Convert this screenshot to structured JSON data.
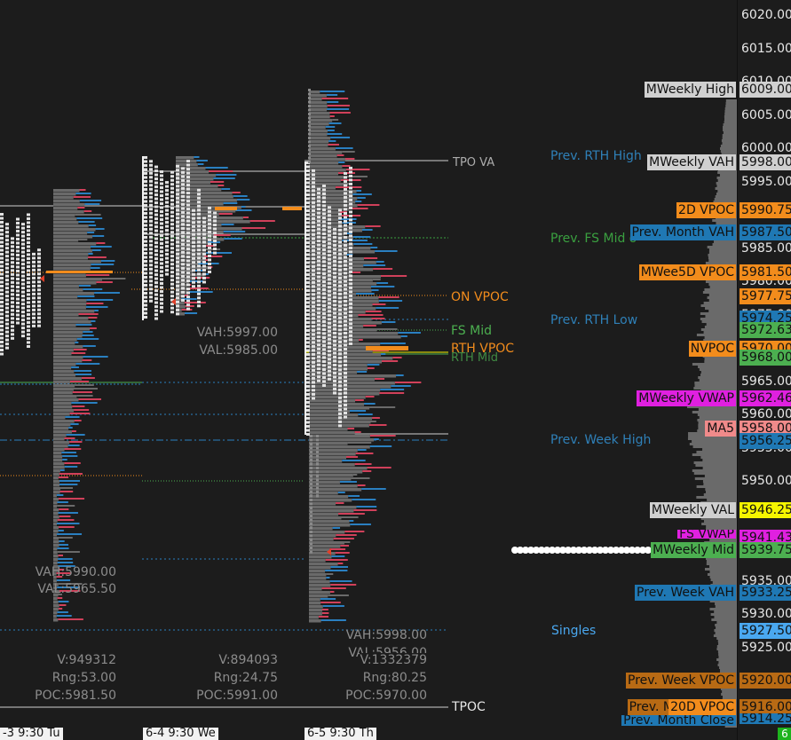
{
  "price_axis": {
    "labels": [
      "6020.00",
      "6015.00",
      "6010.00",
      "6005.00",
      "6000.00",
      "5995.00",
      "5990.00",
      "5985.00",
      "5980.00",
      "5975.00",
      "5970.00",
      "5965.00",
      "5960.00",
      "5955.00",
      "5950.00",
      "5945.00",
      "5940.00",
      "5935.00",
      "5930.00",
      "5925.00",
      "5920.00",
      "5915.00"
    ],
    "corner_label": "6"
  },
  "axis_tags": [
    {
      "text": "5998.00",
      "bg": "#d0d0d0",
      "fg": "#111111"
    },
    {
      "text": "6009.00",
      "bg": "#d0d0d0",
      "fg": "#111111"
    },
    {
      "text": "5990.75",
      "bg": "#f28c1c",
      "fg": "#111111"
    },
    {
      "text": "5987.50",
      "bg": "#1f78b4",
      "fg": "#111111"
    },
    {
      "text": "5981.50",
      "bg": "#f28c1c",
      "fg": "#111111"
    },
    {
      "text": "5977.75",
      "bg": "#f28c1c",
      "fg": "#111111"
    },
    {
      "text": "5974.25",
      "bg": "#1f78b4",
      "fg": "#111111"
    },
    {
      "text": "5972.63",
      "bg": "#4caf50",
      "fg": "#111111"
    },
    {
      "text": "5970.00",
      "bg": "#f28c1c",
      "fg": "#111111"
    },
    {
      "text": "5968.00",
      "bg": "#4caf50",
      "fg": "#111111"
    },
    {
      "text": "5962.46",
      "bg": "#e020e0",
      "fg": "#111111"
    },
    {
      "text": "5958.00",
      "bg": "#f08a8a",
      "fg": "#111111"
    },
    {
      "text": "5956.25",
      "bg": "#1f78b4",
      "fg": "#111111"
    },
    {
      "text": "5946.25",
      "bg": "#f5f500",
      "fg": "#111111"
    },
    {
      "text": "5941.43",
      "bg": "#e020e0",
      "fg": "#111111"
    },
    {
      "text": "5939.75",
      "bg": "#4caf50",
      "fg": "#111111"
    },
    {
      "text": "5933.25",
      "bg": "#1f78b4",
      "fg": "#111111"
    },
    {
      "text": "5927.50",
      "bg": "#4aa8f0",
      "fg": "#111111"
    },
    {
      "text": "5920.00",
      "bg": "#b86a14",
      "fg": "#111111"
    },
    {
      "text": "5916.00",
      "bg": "#b86a14",
      "fg": "#111111"
    },
    {
      "text": "5914.25",
      "bg": "#1f78b4",
      "fg": "#111111"
    }
  ],
  "level_labels": [
    {
      "text": "Weekly High",
      "bg": "#d0d0d0",
      "fg": "#111111",
      "prefix": "M"
    },
    {
      "text": "Weekly VAH",
      "bg": "#d0d0d0",
      "fg": "#111111",
      "prefix": "M"
    },
    {
      "text": "2D VPOC",
      "bg": "#f28c1c",
      "fg": "#111111",
      "prefix": ""
    },
    {
      "text": "Prev. Month VAH",
      "bg": "#1f78b4",
      "fg": "#111111",
      "prefix": ""
    },
    {
      "text": "Wee5D VPOC",
      "bg": "#f28c1c",
      "fg": "#111111",
      "prefix": "M"
    },
    {
      "text": "NVPOC",
      "bg": "#f28c1c",
      "fg": "#111111",
      "prefix": ""
    },
    {
      "text": "Weekly VWAP",
      "bg": "#e020e0",
      "fg": "#111111",
      "prefix": "M"
    },
    {
      "text": "MA5",
      "bg": "#f08a8a",
      "fg": "#111111",
      "prefix": ""
    },
    {
      "text": "Weekly VAL",
      "bg": "#d0d0d0",
      "fg": "#111111",
      "prefix": "M"
    },
    {
      "text": "FS VWAP",
      "bg": "#e020e0",
      "fg": "#111111",
      "prefix": ""
    },
    {
      "text": "Weekly Mid",
      "bg": "#4caf50",
      "fg": "#111111",
      "prefix": "M"
    },
    {
      "text": "Prev. Week VAH",
      "bg": "#1f78b4",
      "fg": "#111111",
      "prefix": ""
    },
    {
      "text": "Prev. Week VPOC",
      "bg": "#b86a14",
      "fg": "#111111",
      "prefix": ""
    },
    {
      "text": "Prev. M",
      "bg": "#b86a14",
      "fg": "#111111",
      "prefix": ""
    },
    {
      "text": "20D VPOC",
      "bg": "#f28c1c",
      "fg": "#111111",
      "prefix": ""
    },
    {
      "text": "Prev. Month Close",
      "bg": "#1f78b4",
      "fg": "#111111",
      "prefix": ""
    }
  ],
  "floating_labels": [
    {
      "text": "Prev. RTH High",
      "color": "#2f80b8"
    },
    {
      "text": "Prev. FS Mid o",
      "color": "#3aa040"
    },
    {
      "text": "Prev. RTH Low",
      "color": "#2f80b8"
    },
    {
      "text": "Prev. Week High",
      "color": "#2f80b8"
    },
    {
      "text": "Singles",
      "color": "#4aa8f0"
    },
    {
      "text": "ON VPOC",
      "color": "#f28c1c"
    },
    {
      "text": "FS Mid",
      "color": "#4caf50"
    },
    {
      "text": "RTH VPOC",
      "color": "#f28c1c"
    },
    {
      "text": "RTH Mid",
      "color": "#4caf50"
    },
    {
      "text": "TPO VA",
      "color": "#d0d0d0"
    },
    {
      "text": "TPOC",
      "color": "#e8e8e8"
    }
  ],
  "sessions": [
    {
      "vah": "VAH:5990.00",
      "val": "VAL:5965.50",
      "volume": "V:949312",
      "range": "Rng:53.00",
      "poc": "POC:5981.50"
    },
    {
      "vah": "VAH:5997.00",
      "val": "VAL:5985.00",
      "volume": "V:894093",
      "range": "Rng:24.75",
      "poc": "POC:5991.00"
    },
    {
      "vah": "VAH:5998.00",
      "val": "VAL:5956.00",
      "volume": "V:1332379",
      "range": "Rng:80.25",
      "poc": "POC:5970.00"
    }
  ],
  "time_labels": [
    "-3  9:30 Tu",
    "6-4  9:30 We",
    "6-5  9:30 Th"
  ],
  "colors": {
    "background": "#1c1c1c",
    "tpo": "#e6e6e6",
    "vp_grey": "#6e6e6e",
    "vp_blue": "#2a7fc0",
    "vp_red": "#d0405a",
    "poc": "#f28c1c"
  }
}
